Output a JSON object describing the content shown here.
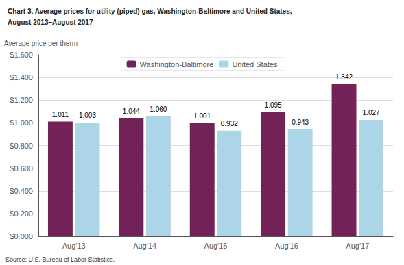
{
  "chart_data": {
    "type": "bar",
    "title": "Chart 3. Average prices for utility (piped) gas, Washington-Baltimore and United States,",
    "subtitle": "August 2013–August 2017",
    "ylabel": "Average price per therm",
    "annotations": [
      "Source: U.S. Bureau of Labor Statistics."
    ],
    "categories": [
      "Aug'13",
      "Aug'14",
      "Aug'15",
      "Aug'16",
      "Aug'17"
    ],
    "series": [
      {
        "name": "Washington-Baltimore",
        "color": "#722257",
        "values": [
          1.011,
          1.044,
          1.001,
          1.095,
          1.342
        ],
        "value_labels": [
          "1.011",
          "1.044",
          "1.001",
          "1.095",
          "1.342"
        ]
      },
      {
        "name": "United States",
        "color": "#acd5e8",
        "values": [
          1.003,
          1.06,
          0.932,
          0.943,
          1.027
        ],
        "value_labels": [
          "1.003",
          "1.060",
          "0.932",
          "0.943",
          "1.027"
        ]
      }
    ],
    "ylim": [
      0.0,
      1.6
    ],
    "yticks": [
      {
        "value": 0.0,
        "label": "$0.000"
      },
      {
        "value": 0.2,
        "label": "$0.200"
      },
      {
        "value": 0.4,
        "label": "$0.400"
      },
      {
        "value": 0.6,
        "label": "$0.600"
      },
      {
        "value": 0.8,
        "label": "$0.800"
      },
      {
        "value": 1.0,
        "label": "$1.000"
      },
      {
        "value": 1.2,
        "label": "$1.200"
      },
      {
        "value": 1.4,
        "label": "$1.400"
      },
      {
        "value": 1.6,
        "label": "$1.600"
      }
    ],
    "grid": true,
    "legend": "upper center",
    "data_labels": true
  }
}
